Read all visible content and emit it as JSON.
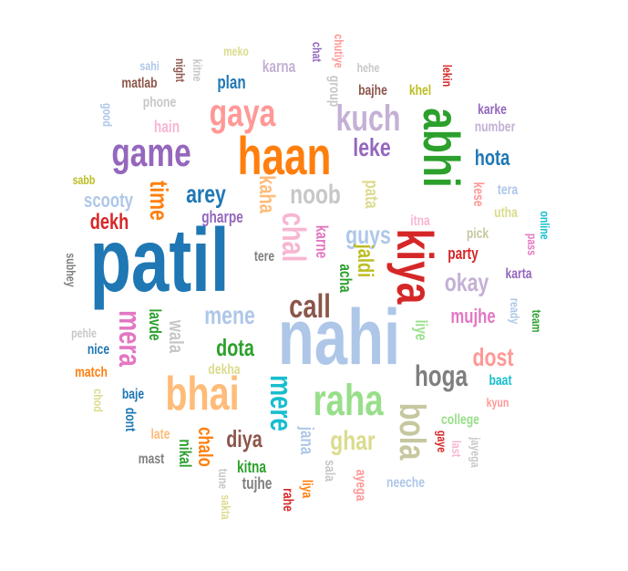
{
  "words": [
    {
      "text": "patil",
      "color": "#1f77b4",
      "size": 98,
      "vertical": false
    },
    {
      "text": "nahi",
      "color": "#aec7e8",
      "size": 86,
      "vertical": false
    },
    {
      "text": "haan",
      "color": "#ff7f0e",
      "size": 58,
      "vertical": false
    },
    {
      "text": "kiya",
      "color": "#d62728",
      "size": 56,
      "vertical": true
    },
    {
      "text": "abhi",
      "color": "#2ca02c",
      "size": 56,
      "vertical": true
    },
    {
      "text": "bhai",
      "color": "#ffbb78",
      "size": 52,
      "vertical": false
    },
    {
      "text": "raha",
      "color": "#98df8a",
      "size": 48,
      "vertical": false
    },
    {
      "text": "game",
      "color": "#9467bd",
      "size": 44,
      "vertical": false
    },
    {
      "text": "gaya",
      "color": "#ff9896",
      "size": 42,
      "vertical": false
    },
    {
      "text": "kuch",
      "color": "#c5b0d5",
      "size": 40,
      "vertical": false
    },
    {
      "text": "bola",
      "color": "#c7c7a0",
      "size": 40,
      "vertical": true
    },
    {
      "text": "call",
      "color": "#8c564b",
      "size": 36,
      "vertical": false
    },
    {
      "text": "chal",
      "color": "#f7b6d2",
      "size": 36,
      "vertical": true
    },
    {
      "text": "mera",
      "color": "#e377c2",
      "size": 34,
      "vertical": true
    },
    {
      "text": "mere",
      "color": "#17becf",
      "size": 34,
      "vertical": true
    },
    {
      "text": "hoga",
      "color": "#7f7f7f",
      "size": 32,
      "vertical": false
    },
    {
      "text": "noob",
      "color": "#c7c7c7",
      "size": 30,
      "vertical": false
    },
    {
      "text": "ghar",
      "color": "#dbdb8d",
      "size": 30,
      "vertical": false
    },
    {
      "text": "okay",
      "color": "#c5b0d5",
      "size": 28,
      "vertical": false
    },
    {
      "text": "dost",
      "color": "#ff9896",
      "size": 28,
      "vertical": false
    },
    {
      "text": "guys",
      "color": "#aec7e8",
      "size": 28,
      "vertical": false
    },
    {
      "text": "mene",
      "color": "#aec7e8",
      "size": 28,
      "vertical": false
    },
    {
      "text": "arey",
      "color": "#1f77b4",
      "size": 28,
      "vertical": false
    },
    {
      "text": "leke",
      "color": "#9467bd",
      "size": 28,
      "vertical": false
    },
    {
      "text": "time",
      "color": "#ff7f0e",
      "size": 28,
      "vertical": true
    },
    {
      "text": "dota",
      "color": "#2ca02c",
      "size": 26,
      "vertical": false
    },
    {
      "text": "diya",
      "color": "#8c564b",
      "size": 26,
      "vertical": false
    },
    {
      "text": "hota",
      "color": "#1f77b4",
      "size": 24,
      "vertical": false
    },
    {
      "text": "jaldi",
      "color": "#bcbd22",
      "size": 24,
      "vertical": true
    },
    {
      "text": "kaha",
      "color": "#ffbb78",
      "size": 24,
      "vertical": true
    },
    {
      "text": "dekh",
      "color": "#d62728",
      "size": 24,
      "vertical": false
    },
    {
      "text": "scooty",
      "color": "#aec7e8",
      "size": 22,
      "vertical": false
    },
    {
      "text": "chalo",
      "color": "#ff7f0e",
      "size": 22,
      "vertical": true
    },
    {
      "text": "mujhe",
      "color": "#e377c2",
      "size": 22,
      "vertical": false
    },
    {
      "text": "wala",
      "color": "#c7c7c7",
      "size": 22,
      "vertical": true
    },
    {
      "text": "jana",
      "color": "#aec7e8",
      "size": 20,
      "vertical": true
    },
    {
      "text": "pata",
      "color": "#dbdb8d",
      "size": 20,
      "vertical": true
    },
    {
      "text": "plan",
      "color": "#1f77b4",
      "size": 20,
      "vertical": false
    },
    {
      "text": "karne",
      "color": "#e377c2",
      "size": 18,
      "vertical": true
    },
    {
      "text": "gharpe",
      "color": "#9467bd",
      "size": 18,
      "vertical": false
    },
    {
      "text": "lavde",
      "color": "#2ca02c",
      "size": 18,
      "vertical": true
    },
    {
      "text": "liye",
      "color": "#98df8a",
      "size": 18,
      "vertical": true
    },
    {
      "text": "acha",
      "color": "#2ca02c",
      "size": 18,
      "vertical": true
    },
    {
      "text": "party",
      "color": "#d62728",
      "size": 18,
      "vertical": false
    },
    {
      "text": "kitna",
      "color": "#2ca02c",
      "size": 18,
      "vertical": false
    },
    {
      "text": "tujhe",
      "color": "#7f7f7f",
      "size": 18,
      "vertical": false
    },
    {
      "text": "karna",
      "color": "#c5b0d5",
      "size": 18,
      "vertical": false
    },
    {
      "text": "hain",
      "color": "#f7b6d2",
      "size": 18,
      "vertical": false
    },
    {
      "text": "nikal",
      "color": "#2ca02c",
      "size": 18,
      "vertical": true
    },
    {
      "text": "kese",
      "color": "#ff9896",
      "size": 16,
      "vertical": true
    },
    {
      "text": "utha",
      "color": "#dbdb8d",
      "size": 16,
      "vertical": false
    },
    {
      "text": "tere",
      "color": "#7f7f7f",
      "size": 16,
      "vertical": false
    },
    {
      "text": "karta",
      "color": "#9467bd",
      "size": 16,
      "vertical": false
    },
    {
      "text": "pick",
      "color": "#c7c7a0",
      "size": 16,
      "vertical": false
    },
    {
      "text": "tera",
      "color": "#aec7e8",
      "size": 16,
      "vertical": false
    },
    {
      "text": "baat",
      "color": "#17becf",
      "size": 16,
      "vertical": false
    },
    {
      "text": "college",
      "color": "#98df8a",
      "size": 16,
      "vertical": false
    },
    {
      "text": "late",
      "color": "#ffbb78",
      "size": 16,
      "vertical": false
    },
    {
      "text": "khel",
      "color": "#bcbd22",
      "size": 16,
      "vertical": false
    },
    {
      "text": "phone",
      "color": "#c7c7c7",
      "size": 16,
      "vertical": false
    },
    {
      "text": "matlab",
      "color": "#8c564b",
      "size": 16,
      "vertical": false
    },
    {
      "text": "bajhe",
      "color": "#8c564b",
      "size": 16,
      "vertical": false
    },
    {
      "text": "group",
      "color": "#c7c7c7",
      "size": 16,
      "vertical": true
    },
    {
      "text": "karke",
      "color": "#9467bd",
      "size": 16,
      "vertical": false
    },
    {
      "text": "number",
      "color": "#c5b0d5",
      "size": 16,
      "vertical": false
    },
    {
      "text": "itna",
      "color": "#f7b6d2",
      "size": 16,
      "vertical": false
    },
    {
      "text": "baje",
      "color": "#1f77b4",
      "size": 16,
      "vertical": false
    },
    {
      "text": "dont",
      "color": "#1f77b4",
      "size": 16,
      "vertical": true
    },
    {
      "text": "match",
      "color": "#ff7f0e",
      "size": 16,
      "vertical": false
    },
    {
      "text": "nice",
      "color": "#1f77b4",
      "size": 16,
      "vertical": false
    },
    {
      "text": "dekha",
      "color": "#dbdb8d",
      "size": 16,
      "vertical": false
    },
    {
      "text": "sala",
      "color": "#c7c7c7",
      "size": 16,
      "vertical": true
    },
    {
      "text": "ayega",
      "color": "#ff9896",
      "size": 16,
      "vertical": true
    },
    {
      "text": "neeche",
      "color": "#aec7e8",
      "size": 16,
      "vertical": false
    },
    {
      "text": "liya",
      "color": "#ff7f0e",
      "size": 16,
      "vertical": true
    },
    {
      "text": "rahe",
      "color": "#d62728",
      "size": 16,
      "vertical": true
    },
    {
      "text": "mast",
      "color": "#7f7f7f",
      "size": 16,
      "vertical": false
    },
    {
      "text": "sakta",
      "color": "#dbdb8d",
      "size": 14,
      "vertical": true
    },
    {
      "text": "tune",
      "color": "#c7c7c7",
      "size": 14,
      "vertical": true
    },
    {
      "text": "chat",
      "color": "#9467bd",
      "size": 14,
      "vertical": true
    },
    {
      "text": "chutiye",
      "color": "#ff9896",
      "size": 14,
      "vertical": true
    },
    {
      "text": "hehe",
      "color": "#c7c7c7",
      "size": 14,
      "vertical": false
    },
    {
      "text": "lekin",
      "color": "#d62728",
      "size": 14,
      "vertical": true
    },
    {
      "text": "meko",
      "color": "#dbdb8d",
      "size": 14,
      "vertical": false
    },
    {
      "text": "kitne",
      "color": "#c7c7c7",
      "size": 14,
      "vertical": true
    },
    {
      "text": "night",
      "color": "#8c564b",
      "size": 14,
      "vertical": true
    },
    {
      "text": "sahi",
      "color": "#aec7e8",
      "size": 14,
      "vertical": false
    },
    {
      "text": "good",
      "color": "#aec7e8",
      "size": 14,
      "vertical": true
    },
    {
      "text": "sabb",
      "color": "#bcbd22",
      "size": 14,
      "vertical": false
    },
    {
      "text": "subhey",
      "color": "#7f7f7f",
      "size": 14,
      "vertical": true
    },
    {
      "text": "pehle",
      "color": "#c7c7c7",
      "size": 14,
      "vertical": false
    },
    {
      "text": "chod",
      "color": "#dbdb8d",
      "size": 14,
      "vertical": true
    },
    {
      "text": "online",
      "color": "#17becf",
      "size": 14,
      "vertical": true
    },
    {
      "text": "pass",
      "color": "#e377c2",
      "size": 14,
      "vertical": true
    },
    {
      "text": "ready",
      "color": "#aec7e8",
      "size": 14,
      "vertical": true
    },
    {
      "text": "team",
      "color": "#2ca02c",
      "size": 14,
      "vertical": true
    },
    {
      "text": "kyun",
      "color": "#ff9896",
      "size": 14,
      "vertical": false
    },
    {
      "text": "gaye",
      "color": "#d62728",
      "size": 14,
      "vertical": true
    },
    {
      "text": "last",
      "color": "#f7b6d2",
      "size": 14,
      "vertical": true
    },
    {
      "text": "jayega",
      "color": "#c7c7c7",
      "size": 14,
      "vertical": true
    }
  ]
}
